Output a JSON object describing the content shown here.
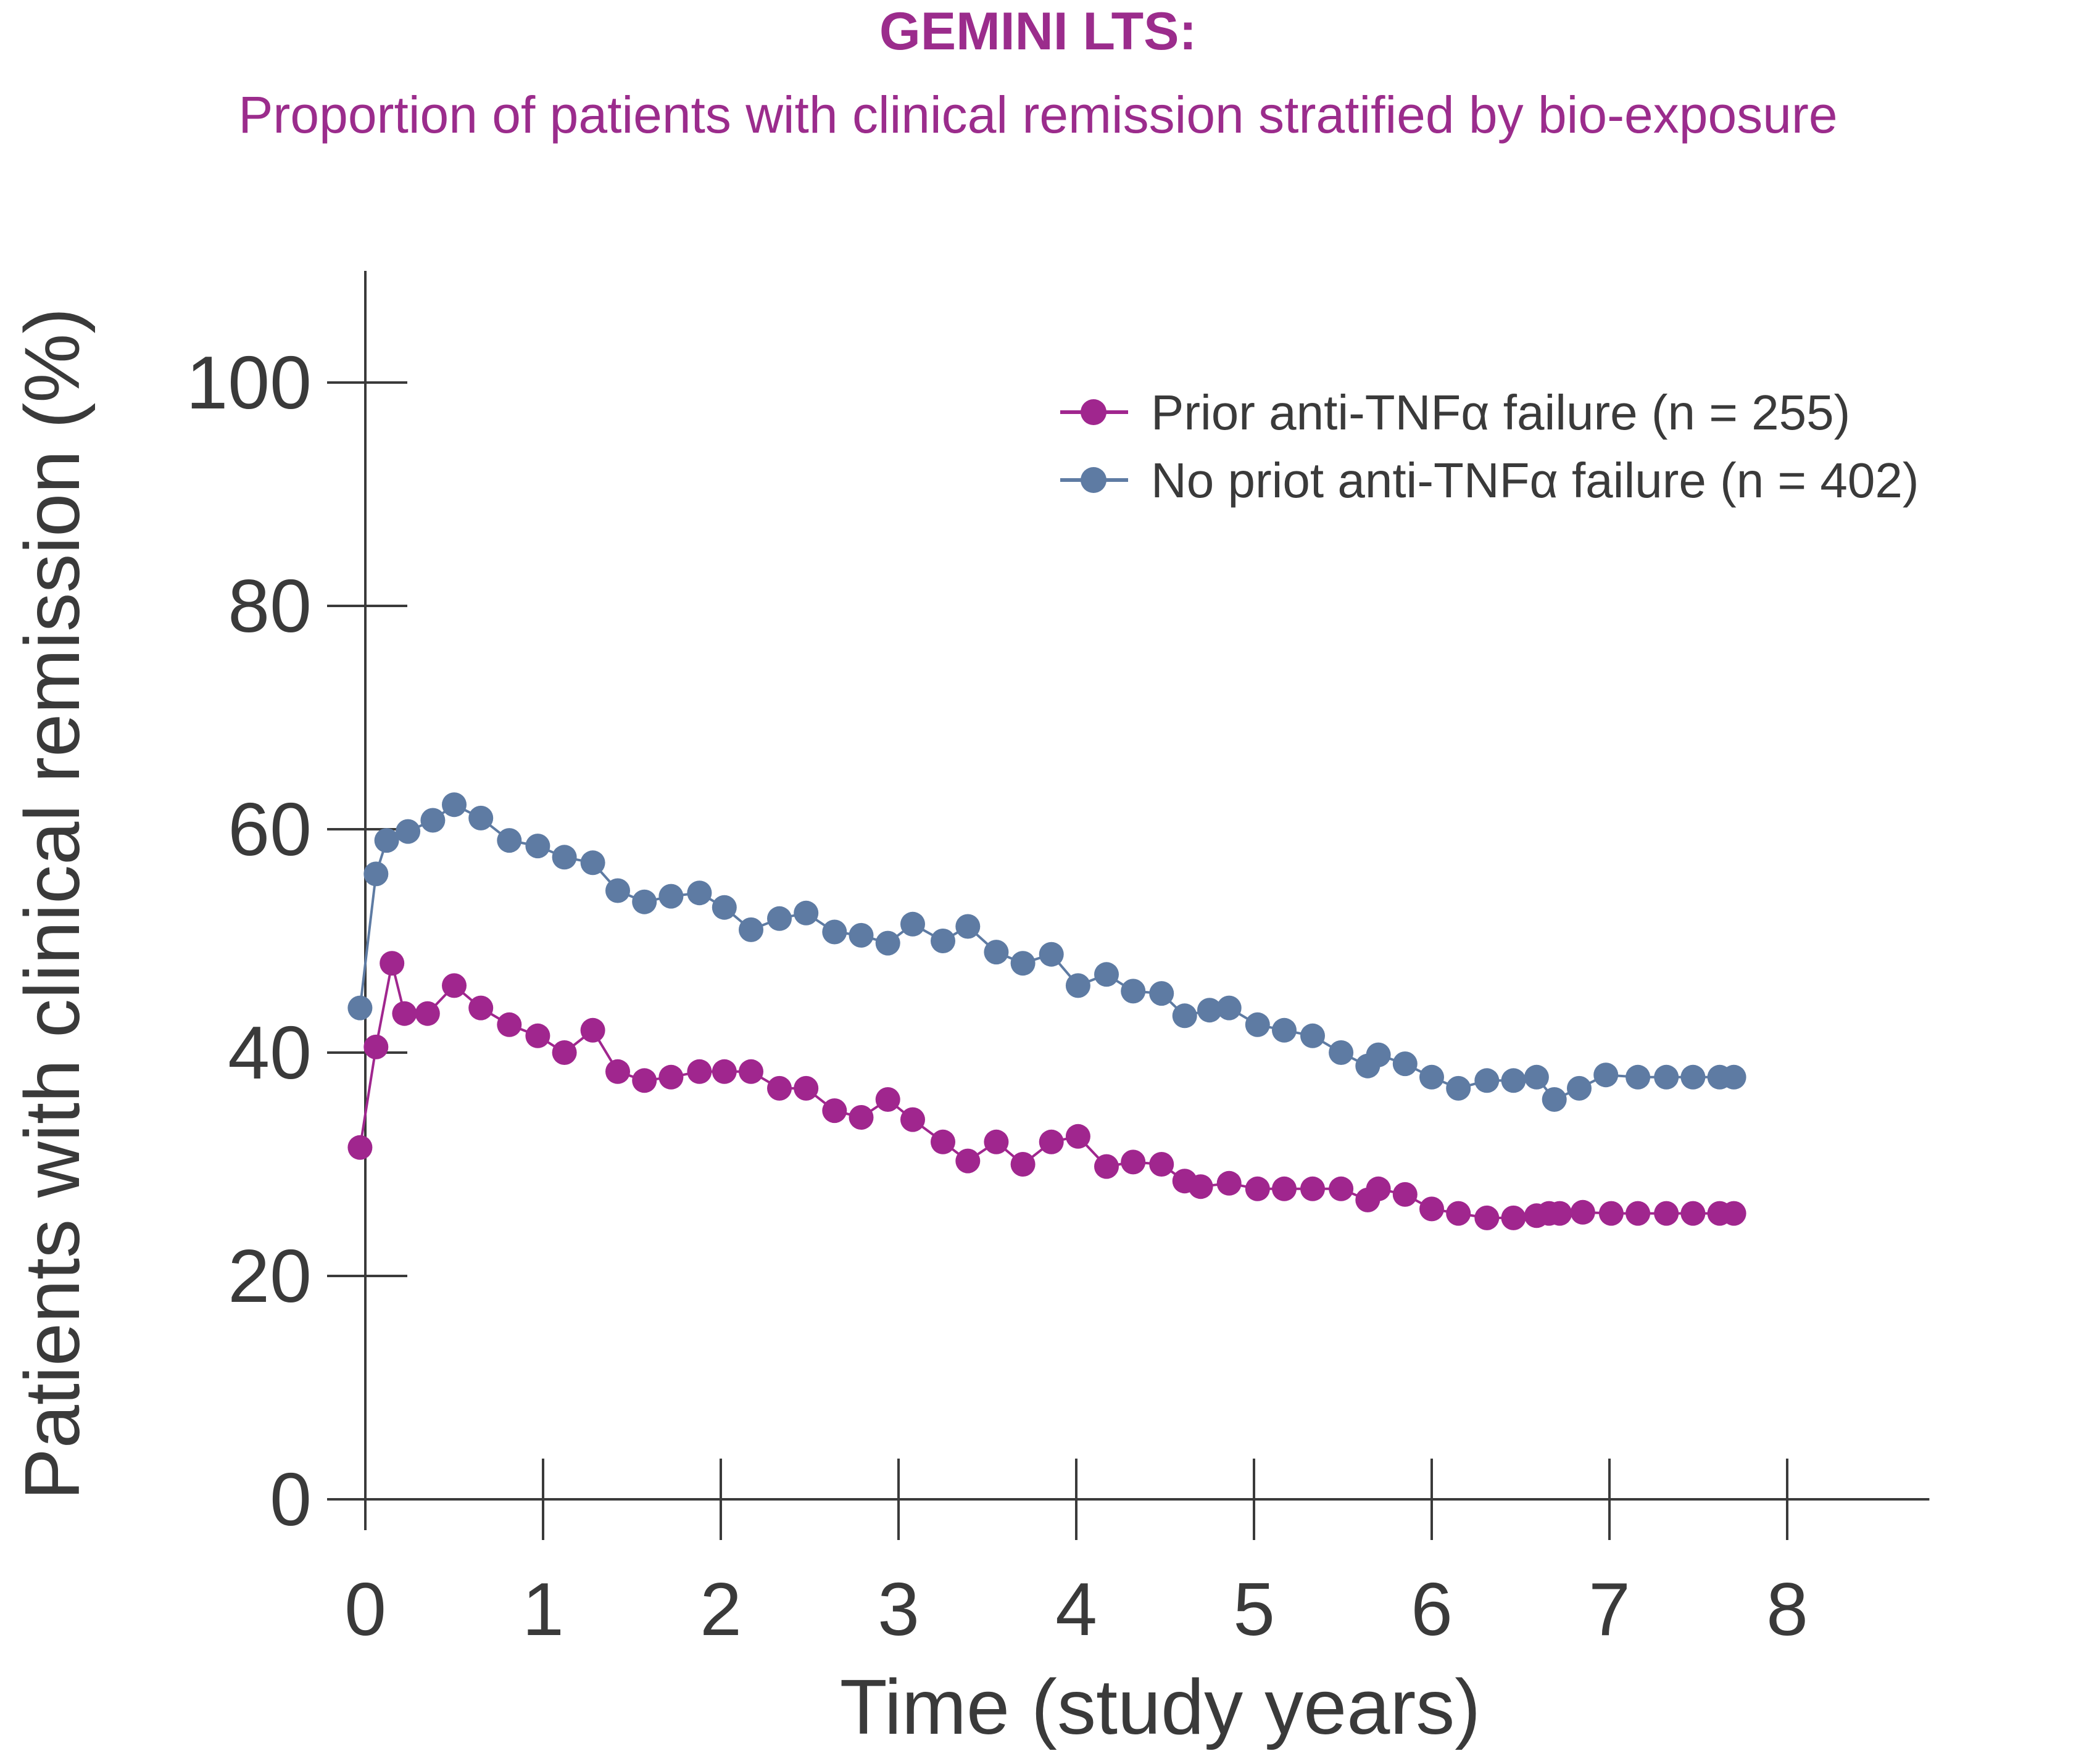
{
  "chart_data": {
    "type": "line",
    "title": "GEMINI LTS:",
    "subtitle": "Proportion of patients with clinical remission stratified by bio-exposure",
    "xlabel": "Time (study years)",
    "ylabel": "Patients with clinical remission (%)",
    "xlim": [
      0,
      8.8
    ],
    "ylim": [
      0,
      110
    ],
    "xticks": [
      0,
      1,
      2,
      3,
      4,
      5,
      6,
      7,
      8
    ],
    "xtick_labels": [
      "0",
      "1",
      "2",
      "3",
      "4",
      "5",
      "6",
      "7",
      "8"
    ],
    "yticks": [
      0,
      20,
      40,
      60,
      80,
      100
    ],
    "ytick_labels": [
      "0",
      "20",
      "40",
      "60",
      "80",
      "100"
    ],
    "grid": false,
    "legend_position": "top-right",
    "colors": {
      "title": "#9B2C8C",
      "axis": "#3a3a3a",
      "label": "#3a3a3a"
    },
    "series": [
      {
        "name": "Prior anti-TNFα failure (n = 255)",
        "color": "#A0268E",
        "x": [
          -0.03,
          0.06,
          0.15,
          0.22,
          0.35,
          0.5,
          0.65,
          0.81,
          0.97,
          1.12,
          1.28,
          1.42,
          1.57,
          1.72,
          1.88,
          2.02,
          2.17,
          2.33,
          2.48,
          2.64,
          2.79,
          2.94,
          3.08,
          3.25,
          3.39,
          3.55,
          3.7,
          3.86,
          4.01,
          4.17,
          4.32,
          4.48,
          4.61,
          4.7,
          4.86,
          5.02,
          5.17,
          5.33,
          5.49,
          5.64,
          5.7,
          5.85,
          6.0,
          6.15,
          6.31,
          6.46,
          6.59,
          6.66,
          6.72,
          6.85,
          7.01,
          7.16,
          7.32,
          7.47,
          7.62,
          7.7
        ],
        "y": [
          31.5,
          40.5,
          48,
          43.5,
          43.5,
          46,
          44,
          42.5,
          41.5,
          40,
          42,
          38.3,
          37.5,
          37.8,
          38.3,
          38.3,
          38.3,
          36.8,
          36.8,
          34.8,
          34.2,
          35.8,
          34,
          32,
          30.3,
          32,
          30,
          32,
          32.5,
          29.8,
          30.2,
          30,
          28.5,
          28,
          28.3,
          27.8,
          27.8,
          27.8,
          27.8,
          26.8,
          27.8,
          27.3,
          26,
          25.6,
          25.2,
          25.2,
          25.4,
          25.6,
          25.6,
          25.7,
          25.6,
          25.6,
          25.6,
          25.6,
          25.6,
          25.6
        ]
      },
      {
        "name": "No priot anti-TNFα failure (n = 402)",
        "color": "#5E7BA3",
        "x": [
          -0.03,
          0.06,
          0.12,
          0.24,
          0.38,
          0.5,
          0.65,
          0.81,
          0.97,
          1.12,
          1.28,
          1.42,
          1.57,
          1.72,
          1.88,
          2.02,
          2.17,
          2.33,
          2.48,
          2.64,
          2.79,
          2.94,
          3.08,
          3.25,
          3.39,
          3.55,
          3.7,
          3.86,
          4.01,
          4.17,
          4.32,
          4.48,
          4.61,
          4.75,
          4.86,
          5.02,
          5.17,
          5.33,
          5.49,
          5.64,
          5.7,
          5.85,
          6.0,
          6.15,
          6.31,
          6.46,
          6.59,
          6.69,
          6.83,
          6.98,
          7.16,
          7.32,
          7.47,
          7.62,
          7.7
        ],
        "y": [
          44,
          56,
          59,
          59.8,
          60.8,
          62.2,
          61,
          59,
          58.5,
          57.5,
          57,
          54.5,
          53.5,
          54,
          54.3,
          53,
          51,
          52,
          52.5,
          50.8,
          50.5,
          49.8,
          51.5,
          50,
          51.3,
          49,
          48,
          48.8,
          46,
          47,
          45.5,
          45.3,
          43.3,
          43.8,
          44,
          42.5,
          42,
          41.5,
          40,
          38.8,
          39.8,
          39,
          37.8,
          36.8,
          37.5,
          37.5,
          37.8,
          35.8,
          36.8,
          38,
          37.8,
          37.8,
          37.8,
          37.8,
          37.8
        ]
      }
    ]
  }
}
